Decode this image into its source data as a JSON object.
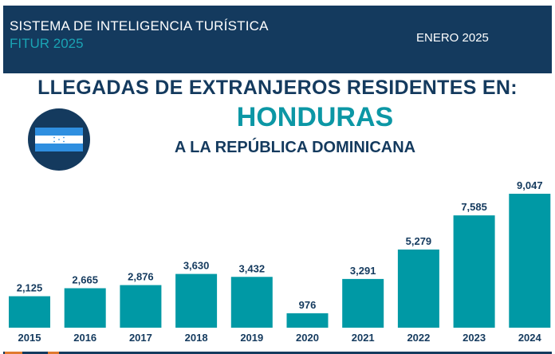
{
  "header": {
    "title": "SISTEMA DE INTELIGENCIA TURÍSTICA",
    "subtitle": "FITUR 2025",
    "date": "ENERO 2025",
    "background_color": "#143a5e",
    "accent_color": "#1aa3b4"
  },
  "headline": {
    "line1": "LLEGADAS DE EXTRANJEROS RESIDENTES EN:",
    "country": "HONDURAS",
    "line3": "A LA REPÚBLICA DOMINICANA"
  },
  "flag": {
    "icon": "honduras-flag-icon"
  },
  "chart_data": {
    "type": "bar",
    "categories": [
      "2015",
      "2016",
      "2017",
      "2018",
      "2019",
      "2020",
      "2021",
      "2022",
      "2023",
      "2024"
    ],
    "values": [
      2125,
      2665,
      2876,
      3630,
      3432,
      976,
      3291,
      5279,
      7585,
      9047
    ],
    "value_labels": [
      "2,125",
      "2,665",
      "2,876",
      "3,630",
      "3,432",
      "976",
      "3,291",
      "5,279",
      "7,585",
      "9,047"
    ],
    "title": "",
    "xlabel": "",
    "ylabel": "",
    "ylim": [
      0,
      9047
    ],
    "grid": false,
    "bar_color": "#0099a5"
  }
}
